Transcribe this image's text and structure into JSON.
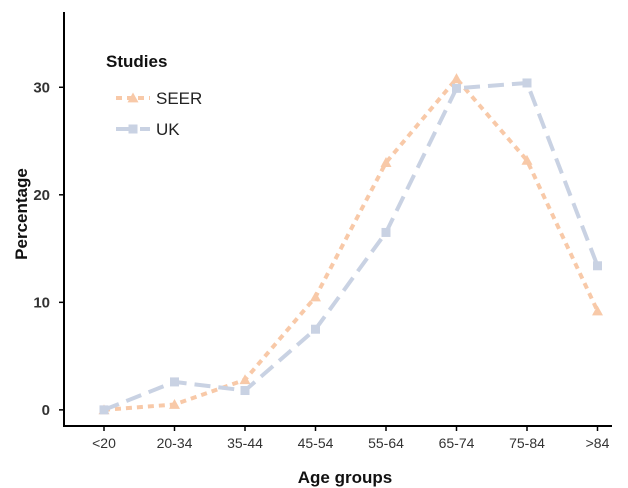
{
  "chart_data": {
    "type": "line",
    "categories": [
      "<20",
      "20-34",
      "35-44",
      "45-54",
      "55-64",
      "65-74",
      "75-84",
      ">84"
    ],
    "xlabel": "Age groups",
    "ylabel": "Percentage",
    "ylim": [
      -1.5,
      37
    ],
    "yticks": [
      0,
      10,
      20,
      30
    ],
    "grid": false,
    "legend": {
      "title": "Studies",
      "placement": "top-left"
    },
    "series": [
      {
        "name": "SEER",
        "color": "#f8c9a8",
        "dash": "dotted",
        "marker": "triangle",
        "values": [
          0.0,
          0.5,
          2.8,
          10.5,
          23.0,
          30.8,
          23.2,
          9.2
        ]
      },
      {
        "name": "UK",
        "color": "#c9d2e3",
        "dash": "dashed",
        "marker": "square",
        "values": [
          0.0,
          2.6,
          1.8,
          7.5,
          16.5,
          29.9,
          30.4,
          13.4
        ]
      }
    ]
  }
}
